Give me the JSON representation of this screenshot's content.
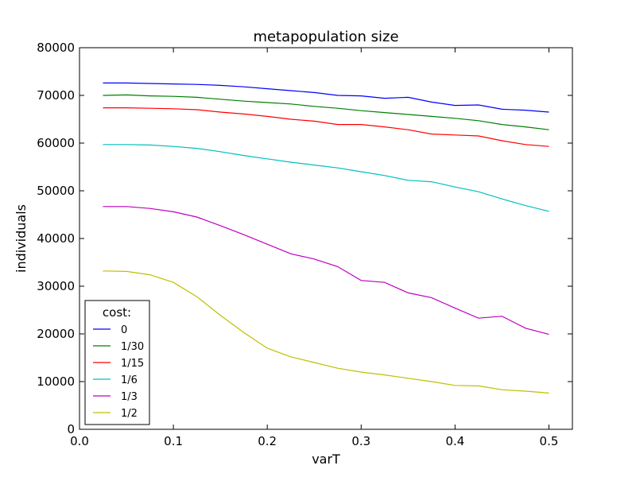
{
  "chart_data": {
    "type": "line",
    "title": "metapopulation size",
    "xlabel": "varT",
    "ylabel": "individuals",
    "xlim": [
      0.0,
      0.525
    ],
    "ylim": [
      0,
      80000
    ],
    "xticks": [
      0.0,
      0.1,
      0.2,
      0.3,
      0.4,
      0.5
    ],
    "xtick_labels": [
      "0.0",
      "0.1",
      "0.2",
      "0.3",
      "0.4",
      "0.5"
    ],
    "yticks": [
      0,
      10000,
      20000,
      30000,
      40000,
      50000,
      60000,
      70000,
      80000
    ],
    "ytick_labels": [
      "0",
      "10000",
      "20000",
      "30000",
      "40000",
      "50000",
      "60000",
      "70000",
      "80000"
    ],
    "grid": false,
    "legend": {
      "title": "cost:",
      "position": "lower-left"
    },
    "x": [
      0.025,
      0.05,
      0.075,
      0.1,
      0.125,
      0.15,
      0.175,
      0.2,
      0.225,
      0.25,
      0.275,
      0.3,
      0.325,
      0.35,
      0.375,
      0.4,
      0.425,
      0.45,
      0.475,
      0.5
    ],
    "series": [
      {
        "name": "0",
        "color": "#0000ff",
        "values": [
          72600,
          72600,
          72500,
          72400,
          72300,
          72100,
          71800,
          71400,
          71000,
          70600,
          70000,
          69900,
          69400,
          69600,
          68600,
          67900,
          68000,
          67100,
          66900,
          66500
        ]
      },
      {
        "name": "1/30",
        "color": "#008000",
        "values": [
          70000,
          70100,
          69900,
          69800,
          69600,
          69200,
          68800,
          68500,
          68200,
          67700,
          67300,
          66800,
          66400,
          66000,
          65600,
          65200,
          64700,
          63900,
          63400,
          62800
        ]
      },
      {
        "name": "1/15",
        "color": "#ff0000",
        "values": [
          67400,
          67400,
          67300,
          67200,
          67000,
          66500,
          66100,
          65600,
          65000,
          64600,
          63900,
          63900,
          63400,
          62800,
          61900,
          61700,
          61500,
          60500,
          59700,
          59300
        ]
      },
      {
        "name": "1/6",
        "color": "#00bfbf",
        "values": [
          59700,
          59700,
          59600,
          59300,
          58900,
          58200,
          57400,
          56700,
          56000,
          55400,
          54800,
          54000,
          53200,
          52200,
          51900,
          50800,
          49800,
          48300,
          46900,
          45700
        ]
      },
      {
        "name": "1/3",
        "color": "#bf00bf",
        "values": [
          46700,
          46700,
          46300,
          45600,
          44500,
          42700,
          40800,
          38800,
          36800,
          35700,
          34100,
          31200,
          30800,
          28600,
          27600,
          25400,
          23300,
          23700,
          21200,
          19900
        ]
      },
      {
        "name": "1/2",
        "color": "#bfbf00",
        "values": [
          33200,
          33100,
          32400,
          30800,
          27800,
          23900,
          20300,
          17000,
          15200,
          14000,
          12800,
          12000,
          11400,
          10700,
          10000,
          9200,
          9100,
          8300,
          8000,
          7600
        ]
      }
    ]
  }
}
